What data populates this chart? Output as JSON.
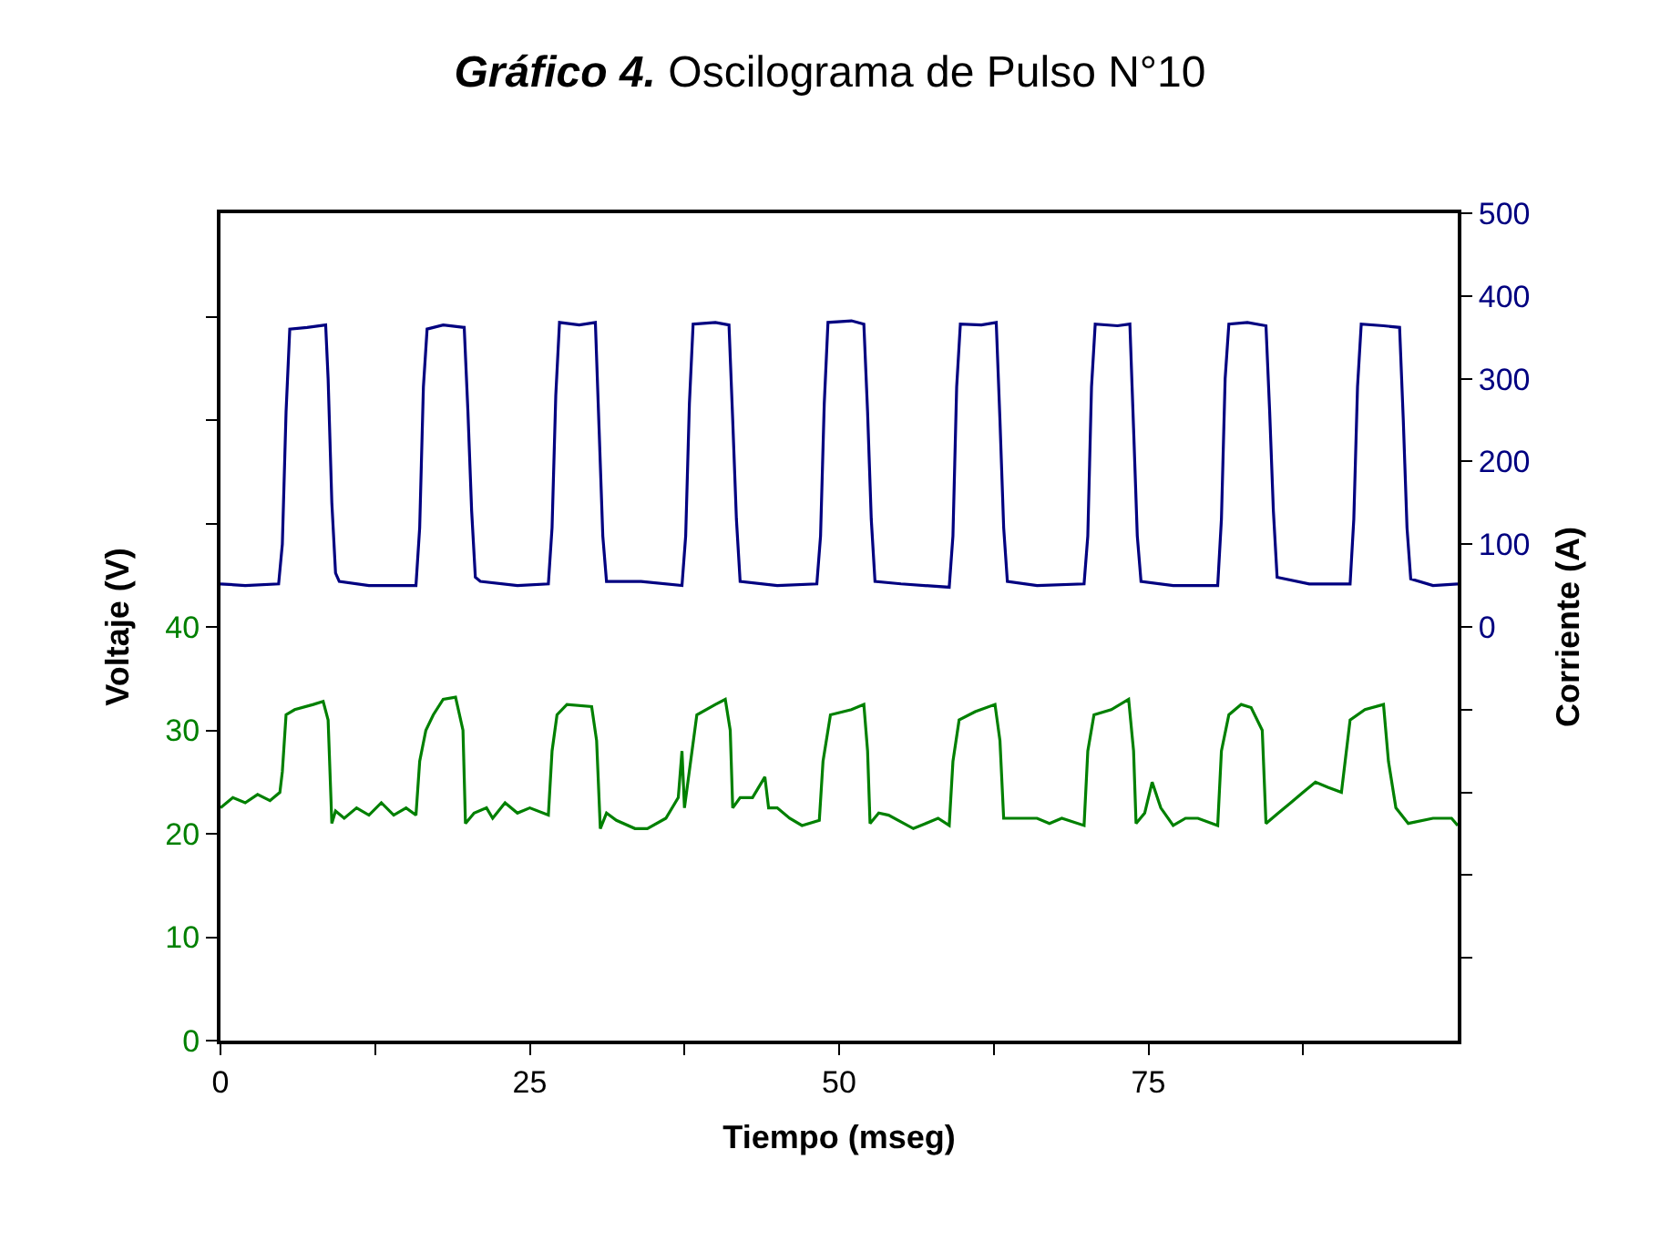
{
  "chart_data": {
    "type": "line",
    "title": "Gráfico 4. Oscilograma de Pulso N°10",
    "xlabel": "Tiempo (mseg)",
    "ylabel": "Voltaje (V)",
    "y2label": "Corriente (A)",
    "xlim": [
      0,
      100
    ],
    "xticks": [
      0,
      {
        "value": 12.5,
        "label": null
      },
      25,
      {
        "value": 37.5,
        "label": null
      },
      50,
      {
        "value": 62.5,
        "label": null
      },
      75,
      {
        "value": 87.5,
        "label": null
      }
    ],
    "ylim": [
      0,
      80
    ],
    "yticks": [
      0,
      10,
      20,
      30,
      40,
      {
        "value": 50,
        "label": null
      },
      {
        "value": 60,
        "label": null
      },
      {
        "value": 70,
        "label": null
      }
    ],
    "y2lim": [
      -500,
      500
    ],
    "y2ticks": [
      {
        "value": -400,
        "label": null
      },
      {
        "value": -300,
        "label": null
      },
      {
        "value": -200,
        "label": null
      },
      {
        "value": -100,
        "label": null
      },
      0,
      100,
      200,
      300,
      400,
      500
    ],
    "marker": "none",
    "line_style": "solid",
    "series": [
      {
        "color": "#000080",
        "axis": "y2",
        "x": [
          0,
          2,
          4.7,
          5.0,
          5.3,
          5.6,
          7,
          8.5,
          8.7,
          9.0,
          9.3,
          9.6,
          12,
          15.8,
          16.1,
          16.4,
          16.7,
          18,
          19.7,
          20.0,
          20.3,
          20.6,
          21,
          24,
          26.5,
          26.8,
          27.1,
          27.4,
          29,
          30.3,
          30.6,
          30.9,
          31.2,
          34,
          37.3,
          37.6,
          37.9,
          38.2,
          40,
          41.1,
          41.4,
          41.7,
          42,
          45,
          48.2,
          48.5,
          48.8,
          49.1,
          51,
          52,
          52.3,
          52.6,
          52.9,
          55,
          58.9,
          59.2,
          59.5,
          59.8,
          61.5,
          62.7,
          63.0,
          63.3,
          63.6,
          66,
          69.8,
          70.1,
          70.4,
          70.7,
          72.5,
          73.5,
          73.8,
          74.1,
          74.4,
          77,
          80.6,
          80.9,
          81.2,
          81.5,
          83,
          84.5,
          84.8,
          85.1,
          85.4,
          88,
          91.3,
          91.6,
          91.9,
          92.2,
          94,
          95.3,
          95.6,
          95.9,
          96.2,
          98,
          100
        ],
        "values": [
          52,
          50,
          52,
          100,
          260,
          360,
          362,
          365,
          300,
          150,
          65,
          55,
          50,
          50,
          120,
          290,
          360,
          365,
          362,
          260,
          140,
          60,
          55,
          50,
          52,
          120,
          280,
          368,
          365,
          368,
          240,
          110,
          55,
          55,
          50,
          110,
          270,
          366,
          368,
          365,
          250,
          130,
          55,
          50,
          52,
          110,
          270,
          368,
          370,
          366,
          260,
          130,
          55,
          52,
          48,
          110,
          290,
          366,
          365,
          368,
          250,
          120,
          55,
          50,
          52,
          110,
          290,
          366,
          364,
          366,
          240,
          110,
          55,
          50,
          50,
          130,
          300,
          366,
          368,
          364,
          260,
          140,
          60,
          52,
          52,
          130,
          290,
          366,
          364,
          362,
          250,
          120,
          58,
          50,
          52
        ]
      },
      {
        "color": "#008000",
        "x": [
          0,
          1,
          2,
          3,
          4,
          4.8,
          5.0,
          5.3,
          6,
          7.5,
          8.3,
          8.7,
          9,
          9.3,
          10,
          11,
          12,
          13,
          14,
          15,
          15.8,
          16.1,
          16.6,
          17.2,
          18,
          19,
          19.6,
          19.8,
          20.5,
          21.5,
          22,
          23,
          24,
          25,
          26.5,
          26.8,
          27.2,
          28,
          30,
          30.4,
          30.7,
          31.2,
          32,
          33.5,
          34.5,
          36,
          37,
          37.3,
          37.5,
          38,
          38.5,
          40,
          40.8,
          41.2,
          41.4,
          42,
          43,
          44,
          44.3,
          45,
          46,
          47,
          48.4,
          48.7,
          49.3,
          51,
          52,
          52.3,
          52.5,
          53.2,
          54,
          56,
          57,
          58,
          58.9,
          59.2,
          59.7,
          61,
          62.6,
          63.0,
          63.3,
          64,
          66,
          67,
          68,
          69.8,
          70.1,
          70.6,
          72,
          73.4,
          73.8,
          74,
          74.7,
          75.3,
          76,
          77,
          78,
          79,
          80.6,
          80.9,
          81.5,
          82.5,
          83.3,
          84.2,
          84.5,
          85.5,
          86.5,
          87.5,
          88.5,
          89.5,
          90.6,
          90.9,
          91.3,
          92.5,
          94,
          94.4,
          95,
          96,
          98,
          99.5,
          100
        ],
        "values": [
          22.5,
          23.5,
          23,
          23.8,
          23.2,
          24,
          26,
          31.5,
          32,
          32.5,
          32.8,
          31,
          21,
          22.2,
          21.5,
          22.5,
          21.8,
          23,
          21.8,
          22.5,
          21.8,
          27,
          30,
          31.5,
          33,
          33.2,
          30,
          21,
          22,
          22.5,
          21.5,
          23,
          22,
          22.5,
          21.8,
          28,
          31.5,
          32.5,
          32.3,
          29,
          20.5,
          22,
          21.3,
          20.5,
          20.5,
          21.5,
          23.5,
          28,
          22.5,
          27,
          31.5,
          32.5,
          33,
          30,
          22.5,
          23.5,
          23.5,
          25.5,
          22.5,
          22.5,
          21.5,
          20.8,
          21.3,
          27,
          31.5,
          32,
          32.5,
          28,
          21,
          22,
          21.8,
          20.5,
          21,
          21.5,
          20.8,
          27,
          31,
          31.8,
          32.5,
          29,
          21.5,
          21.5,
          21.5,
          21,
          21.5,
          20.8,
          28,
          31.5,
          32,
          33,
          28,
          21,
          22,
          25,
          22.5,
          20.8,
          21.5,
          21.5,
          20.8,
          28,
          31.5,
          32.5,
          32.2,
          30,
          21,
          22,
          23,
          24,
          25,
          24.5,
          24,
          27,
          31,
          32,
          32.5,
          27,
          22.5,
          21,
          21.5,
          21.5,
          20.8
        ]
      }
    ]
  }
}
